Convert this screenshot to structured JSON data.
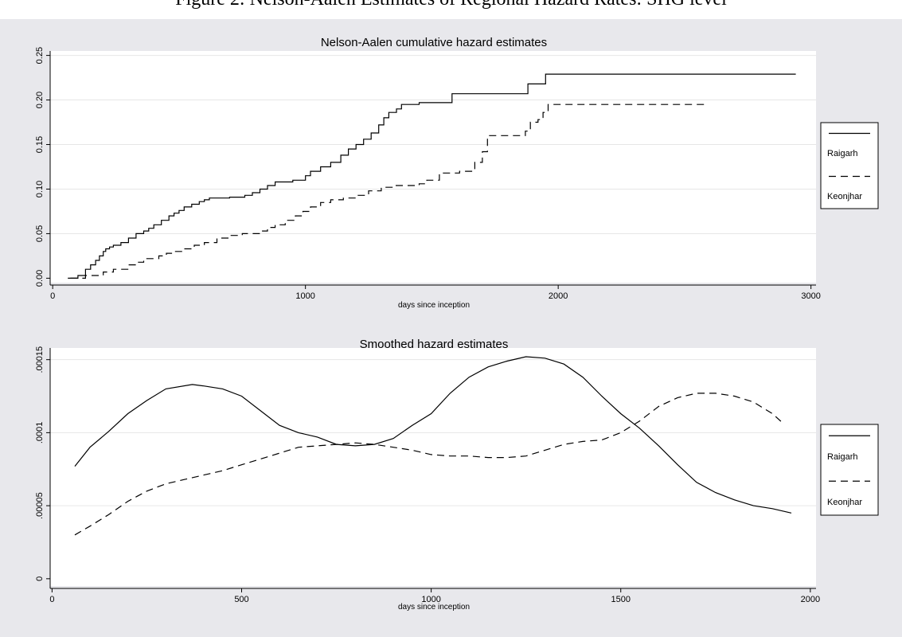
{
  "figure_caption": "Figure 2: Nelson-Aalen Estimates of Regional Hazard Rates: SHG level",
  "colors": {
    "panel_background": "#e8e8ec",
    "plot_background": "#ffffff",
    "grid": "#e6e6e6",
    "line": "#000000"
  },
  "chart_data": [
    {
      "type": "line",
      "title": "Nelson-Aalen cumulative hazard estimates",
      "xlabel": "days since inception",
      "ylabel": "",
      "xlim": [
        -10,
        3020
      ],
      "ylim": [
        -0.005,
        0.255
      ],
      "xticks": [
        0,
        1000,
        2000,
        3000
      ],
      "xtick_labels": [
        "0",
        "1000",
        "2000",
        "3000"
      ],
      "yticks": [
        0,
        0.05,
        0.1,
        0.15,
        0.2,
        0.25
      ],
      "ytick_labels": [
        "0.00",
        "0.05",
        "0.10",
        "0.15",
        "0.20",
        "0.25"
      ],
      "grid": "horizontal",
      "step": true,
      "legend_position": "right",
      "series": [
        {
          "name": "Raigarh",
          "style": "solid",
          "x": [
            60,
            100,
            130,
            150,
            170,
            185,
            200,
            210,
            225,
            240,
            270,
            300,
            330,
            360,
            380,
            400,
            430,
            460,
            480,
            500,
            520,
            550,
            580,
            600,
            620,
            700,
            760,
            790,
            820,
            850,
            880,
            950,
            1000,
            1020,
            1060,
            1100,
            1140,
            1170,
            1200,
            1230,
            1260,
            1290,
            1310,
            1330,
            1360,
            1380,
            1420,
            1450,
            1560,
            1580,
            1660,
            1770,
            1880,
            1900,
            1950,
            2940
          ],
          "y": [
            0,
            0.003,
            0.01,
            0.015,
            0.02,
            0.025,
            0.03,
            0.033,
            0.035,
            0.037,
            0.04,
            0.045,
            0.05,
            0.053,
            0.056,
            0.06,
            0.065,
            0.07,
            0.073,
            0.076,
            0.08,
            0.083,
            0.086,
            0.088,
            0.09,
            0.091,
            0.093,
            0.096,
            0.1,
            0.104,
            0.108,
            0.11,
            0.115,
            0.12,
            0.125,
            0.13,
            0.138,
            0.145,
            0.15,
            0.156,
            0.163,
            0.172,
            0.18,
            0.186,
            0.19,
            0.195,
            0.195,
            0.197,
            0.197,
            0.207,
            0.207,
            0.207,
            0.218,
            0.218,
            0.229,
            0.229
          ]
        },
        {
          "name": "Keonjhar",
          "style": "dashed",
          "x": [
            70,
            130,
            200,
            240,
            300,
            330,
            360,
            420,
            450,
            480,
            520,
            560,
            600,
            650,
            700,
            750,
            820,
            850,
            880,
            920,
            960,
            990,
            1020,
            1060,
            1100,
            1150,
            1200,
            1250,
            1300,
            1350,
            1450,
            1480,
            1530,
            1610,
            1670,
            1700,
            1720,
            1870,
            1890,
            1920,
            1940,
            1960,
            2580
          ],
          "y": [
            0,
            0.003,
            0.007,
            0.01,
            0.015,
            0.018,
            0.022,
            0.025,
            0.028,
            0.03,
            0.033,
            0.037,
            0.04,
            0.045,
            0.048,
            0.05,
            0.053,
            0.057,
            0.06,
            0.065,
            0.07,
            0.075,
            0.08,
            0.085,
            0.088,
            0.09,
            0.093,
            0.098,
            0.102,
            0.104,
            0.106,
            0.11,
            0.118,
            0.12,
            0.13,
            0.142,
            0.16,
            0.165,
            0.175,
            0.178,
            0.186,
            0.195,
            0.195
          ]
        }
      ]
    },
    {
      "type": "line",
      "title": "Smoothed hazard estimates",
      "xlabel": "days since inception",
      "ylabel": "",
      "xlim": [
        -5,
        2015
      ],
      "ylim": [
        -5e-06,
        0.000158
      ],
      "xticks": [
        0,
        500,
        1000,
        1500,
        2000
      ],
      "xtick_labels": [
        "0",
        "500",
        "1000",
        "1500",
        "2000"
      ],
      "yticks": [
        0,
        5e-05,
        0.0001,
        0.00015
      ],
      "ytick_labels": [
        "0",
        ".00005",
        ".0001",
        ".00015"
      ],
      "grid": "horizontal",
      "step": false,
      "legend_position": "right",
      "series": [
        {
          "name": "Raigarh",
          "style": "solid",
          "x": [
            60,
            100,
            150,
            200,
            250,
            300,
            370,
            400,
            450,
            500,
            550,
            600,
            650,
            700,
            750,
            800,
            850,
            900,
            950,
            1000,
            1050,
            1100,
            1150,
            1200,
            1250,
            1300,
            1350,
            1400,
            1450,
            1500,
            1550,
            1600,
            1650,
            1700,
            1750,
            1800,
            1850,
            1900,
            1950
          ],
          "y": [
            7.7e-05,
            9e-05,
            0.000101,
            0.000113,
            0.000122,
            0.00013,
            0.000133,
            0.000132,
            0.00013,
            0.000125,
            0.000115,
            0.000105,
            0.0001,
            9.7e-05,
            9.2e-05,
            9.1e-05,
            9.2e-05,
            9.6e-05,
            0.000105,
            0.000113,
            0.000127,
            0.000138,
            0.000145,
            0.000149,
            0.000152,
            0.000151,
            0.000147,
            0.000138,
            0.000125,
            0.000113,
            0.000103,
            9.1e-05,
            7.8e-05,
            6.6e-05,
            5.9e-05,
            5.4e-05,
            5e-05,
            4.8e-05,
            4.5e-05
          ],
          "legend_label": "Raigarh"
        },
        {
          "name": "Keonjhar",
          "style": "dashed",
          "x": [
            60,
            100,
            150,
            200,
            250,
            300,
            350,
            400,
            450,
            500,
            550,
            600,
            650,
            700,
            750,
            800,
            850,
            900,
            950,
            1000,
            1050,
            1100,
            1150,
            1200,
            1250,
            1300,
            1350,
            1400,
            1450,
            1500,
            1550,
            1600,
            1650,
            1700,
            1750,
            1800,
            1850,
            1900,
            1930
          ],
          "y": [
            3e-05,
            3.6e-05,
            4.4e-05,
            5.3e-05,
            6e-05,
            6.5e-05,
            6.8e-05,
            7.1e-05,
            7.4e-05,
            7.8e-05,
            8.2e-05,
            8.6e-05,
            9e-05,
            9.1e-05,
            9.2e-05,
            9.3e-05,
            9.2e-05,
            9e-05,
            8.8e-05,
            8.5e-05,
            8.4e-05,
            8.4e-05,
            8.3e-05,
            8.3e-05,
            8.4e-05,
            8.8e-05,
            9.2e-05,
            9.4e-05,
            9.5e-05,
            0.0001,
            0.000108,
            0.000118,
            0.000124,
            0.000127,
            0.000127,
            0.000125,
            0.000121,
            0.000113,
            0.000106
          ]
        }
      ]
    }
  ]
}
